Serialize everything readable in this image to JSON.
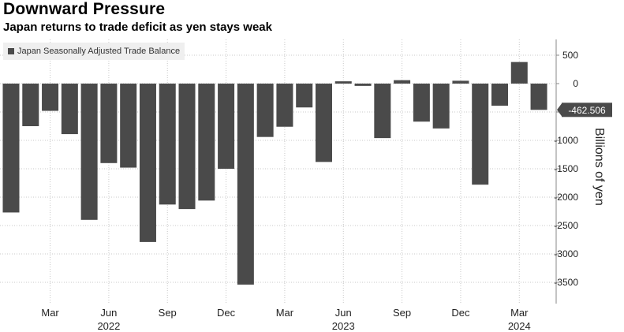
{
  "header": {
    "title": "Downward Pressure",
    "subtitle": "Japan returns to trade deficit as yen stays weak"
  },
  "colors": {
    "bar": "#4a4a4a",
    "grid": "#c8c8c8",
    "axis": "#888888",
    "callout_bg": "#4a4a4a",
    "callout_text": "#ffffff"
  },
  "chart_data": {
    "type": "bar",
    "title": "Downward Pressure",
    "subtitle": "Japan returns to trade deficit as yen stays weak",
    "ylabel": "Billions of yen",
    "xlabel": "",
    "legend": [
      "Japan Seasonally Adjusted Trade Balance"
    ],
    "legend_position": "top-left",
    "grid": true,
    "ylim": [
      -3900,
      780
    ],
    "yticks": [
      500,
      0,
      -500,
      -1000,
      -1500,
      -2000,
      -2500,
      -3000,
      -3500
    ],
    "ytick_labels": [
      "500",
      "0",
      "-500",
      "-1000",
      "-1500",
      "-2000",
      "-2500",
      "-3000",
      "-3500"
    ],
    "x": [
      "Jan 2022",
      "Feb 2022",
      "Mar 2022",
      "Apr 2022",
      "May 2022",
      "Jun 2022",
      "Jul 2022",
      "Aug 2022",
      "Sep 2022",
      "Oct 2022",
      "Nov 2022",
      "Dec 2022",
      "Jan 2023",
      "Feb 2023",
      "Mar 2023",
      "Apr 2023",
      "May 2023",
      "Jun 2023",
      "Jul 2023",
      "Aug 2023",
      "Sep 2023",
      "Oct 2023",
      "Nov 2023",
      "Dec 2023",
      "Jan 2024",
      "Feb 2024",
      "Mar 2024",
      "Apr 2024"
    ],
    "series": [
      {
        "name": "Japan Seasonally Adjusted Trade Balance",
        "values": [
          -2270,
          -750,
          -480,
          -890,
          -2400,
          -1400,
          -1480,
          -2790,
          -2130,
          -2210,
          -2060,
          -1500,
          -3540,
          -940,
          -760,
          -420,
          -1380,
          40,
          -40,
          -960,
          60,
          -670,
          -790,
          50,
          -1780,
          -390,
          380,
          -462.506
        ]
      }
    ],
    "x_tick_labels": [
      {
        "label": "Mar",
        "index": 2
      },
      {
        "label": "Jun",
        "index": 5
      },
      {
        "label": "Sep",
        "index": 8
      },
      {
        "label": "Dec",
        "index": 11
      },
      {
        "label": "Mar",
        "index": 14
      },
      {
        "label": "Jun",
        "index": 17
      },
      {
        "label": "Sep",
        "index": 20
      },
      {
        "label": "Dec",
        "index": 23
      },
      {
        "label": "Mar",
        "index": 26
      }
    ],
    "year_labels": [
      {
        "label": "2022",
        "index": 5
      },
      {
        "label": "2023",
        "index": 17
      },
      {
        "label": "2024",
        "index": 26
      }
    ],
    "last_value_label": "-462.506"
  }
}
